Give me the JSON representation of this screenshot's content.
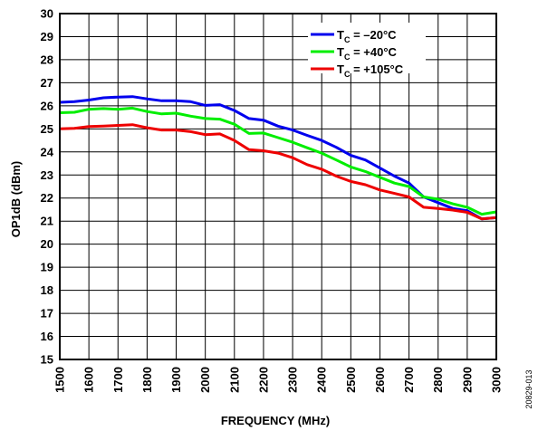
{
  "chart_data": {
    "type": "line",
    "xlabel": "FREQUENCY (MHz)",
    "ylabel": "OP1dB (dBm)",
    "xlim": [
      1500,
      3000
    ],
    "ylim": [
      15,
      30
    ],
    "x_ticks": [
      "1500",
      "1600",
      "1700",
      "1800",
      "1900",
      "2000",
      "2100",
      "2200",
      "2300",
      "2400",
      "2500",
      "2600",
      "2700",
      "2800",
      "2900",
      "3000"
    ],
    "y_ticks": [
      "15",
      "16",
      "17",
      "18",
      "19",
      "20",
      "21",
      "22",
      "23",
      "24",
      "25",
      "26",
      "27",
      "28",
      "29",
      "30"
    ],
    "grid": true,
    "legend_position": "top-right",
    "x": [
      1500,
      1550,
      1600,
      1650,
      1700,
      1750,
      1800,
      1850,
      1900,
      1950,
      2000,
      2050,
      2100,
      2150,
      2200,
      2250,
      2300,
      2350,
      2400,
      2450,
      2500,
      2550,
      2600,
      2650,
      2700,
      2750,
      2800,
      2850,
      2900,
      2950,
      3000
    ],
    "series": [
      {
        "name_main": "T",
        "name_sub": "C",
        "name_rest": " = –20°C",
        "color": "#0000ee",
        "values": [
          26.15,
          26.18,
          26.25,
          26.35,
          26.38,
          26.4,
          26.3,
          26.22,
          26.22,
          26.18,
          26.02,
          26.05,
          25.8,
          25.45,
          25.38,
          25.12,
          24.95,
          24.72,
          24.5,
          24.2,
          23.85,
          23.65,
          23.3,
          22.95,
          22.65,
          22.05,
          21.8,
          21.55,
          21.45,
          21.1,
          21.15
        ]
      },
      {
        "name_main": "T",
        "name_sub": "C",
        "name_rest": " = +40°C",
        "color": "#00ee00",
        "values": [
          25.7,
          25.72,
          25.85,
          25.88,
          25.85,
          25.9,
          25.75,
          25.65,
          25.68,
          25.55,
          25.45,
          25.42,
          25.2,
          24.8,
          24.82,
          24.62,
          24.42,
          24.18,
          23.95,
          23.65,
          23.35,
          23.15,
          22.9,
          22.65,
          22.5,
          22.05,
          21.95,
          21.75,
          21.6,
          21.3,
          21.4
        ]
      },
      {
        "name_main": "T",
        "name_sub": "C",
        "name_rest": " = +105°C",
        "color": "#ee0000",
        "values": [
          25.0,
          25.02,
          25.1,
          25.12,
          25.15,
          25.18,
          25.05,
          24.95,
          24.95,
          24.88,
          24.75,
          24.78,
          24.5,
          24.1,
          24.05,
          23.95,
          23.75,
          23.45,
          23.25,
          22.95,
          22.72,
          22.58,
          22.35,
          22.2,
          22.05,
          21.6,
          21.55,
          21.48,
          21.38,
          21.1,
          21.15
        ]
      }
    ]
  },
  "figure_id": "20829-013"
}
